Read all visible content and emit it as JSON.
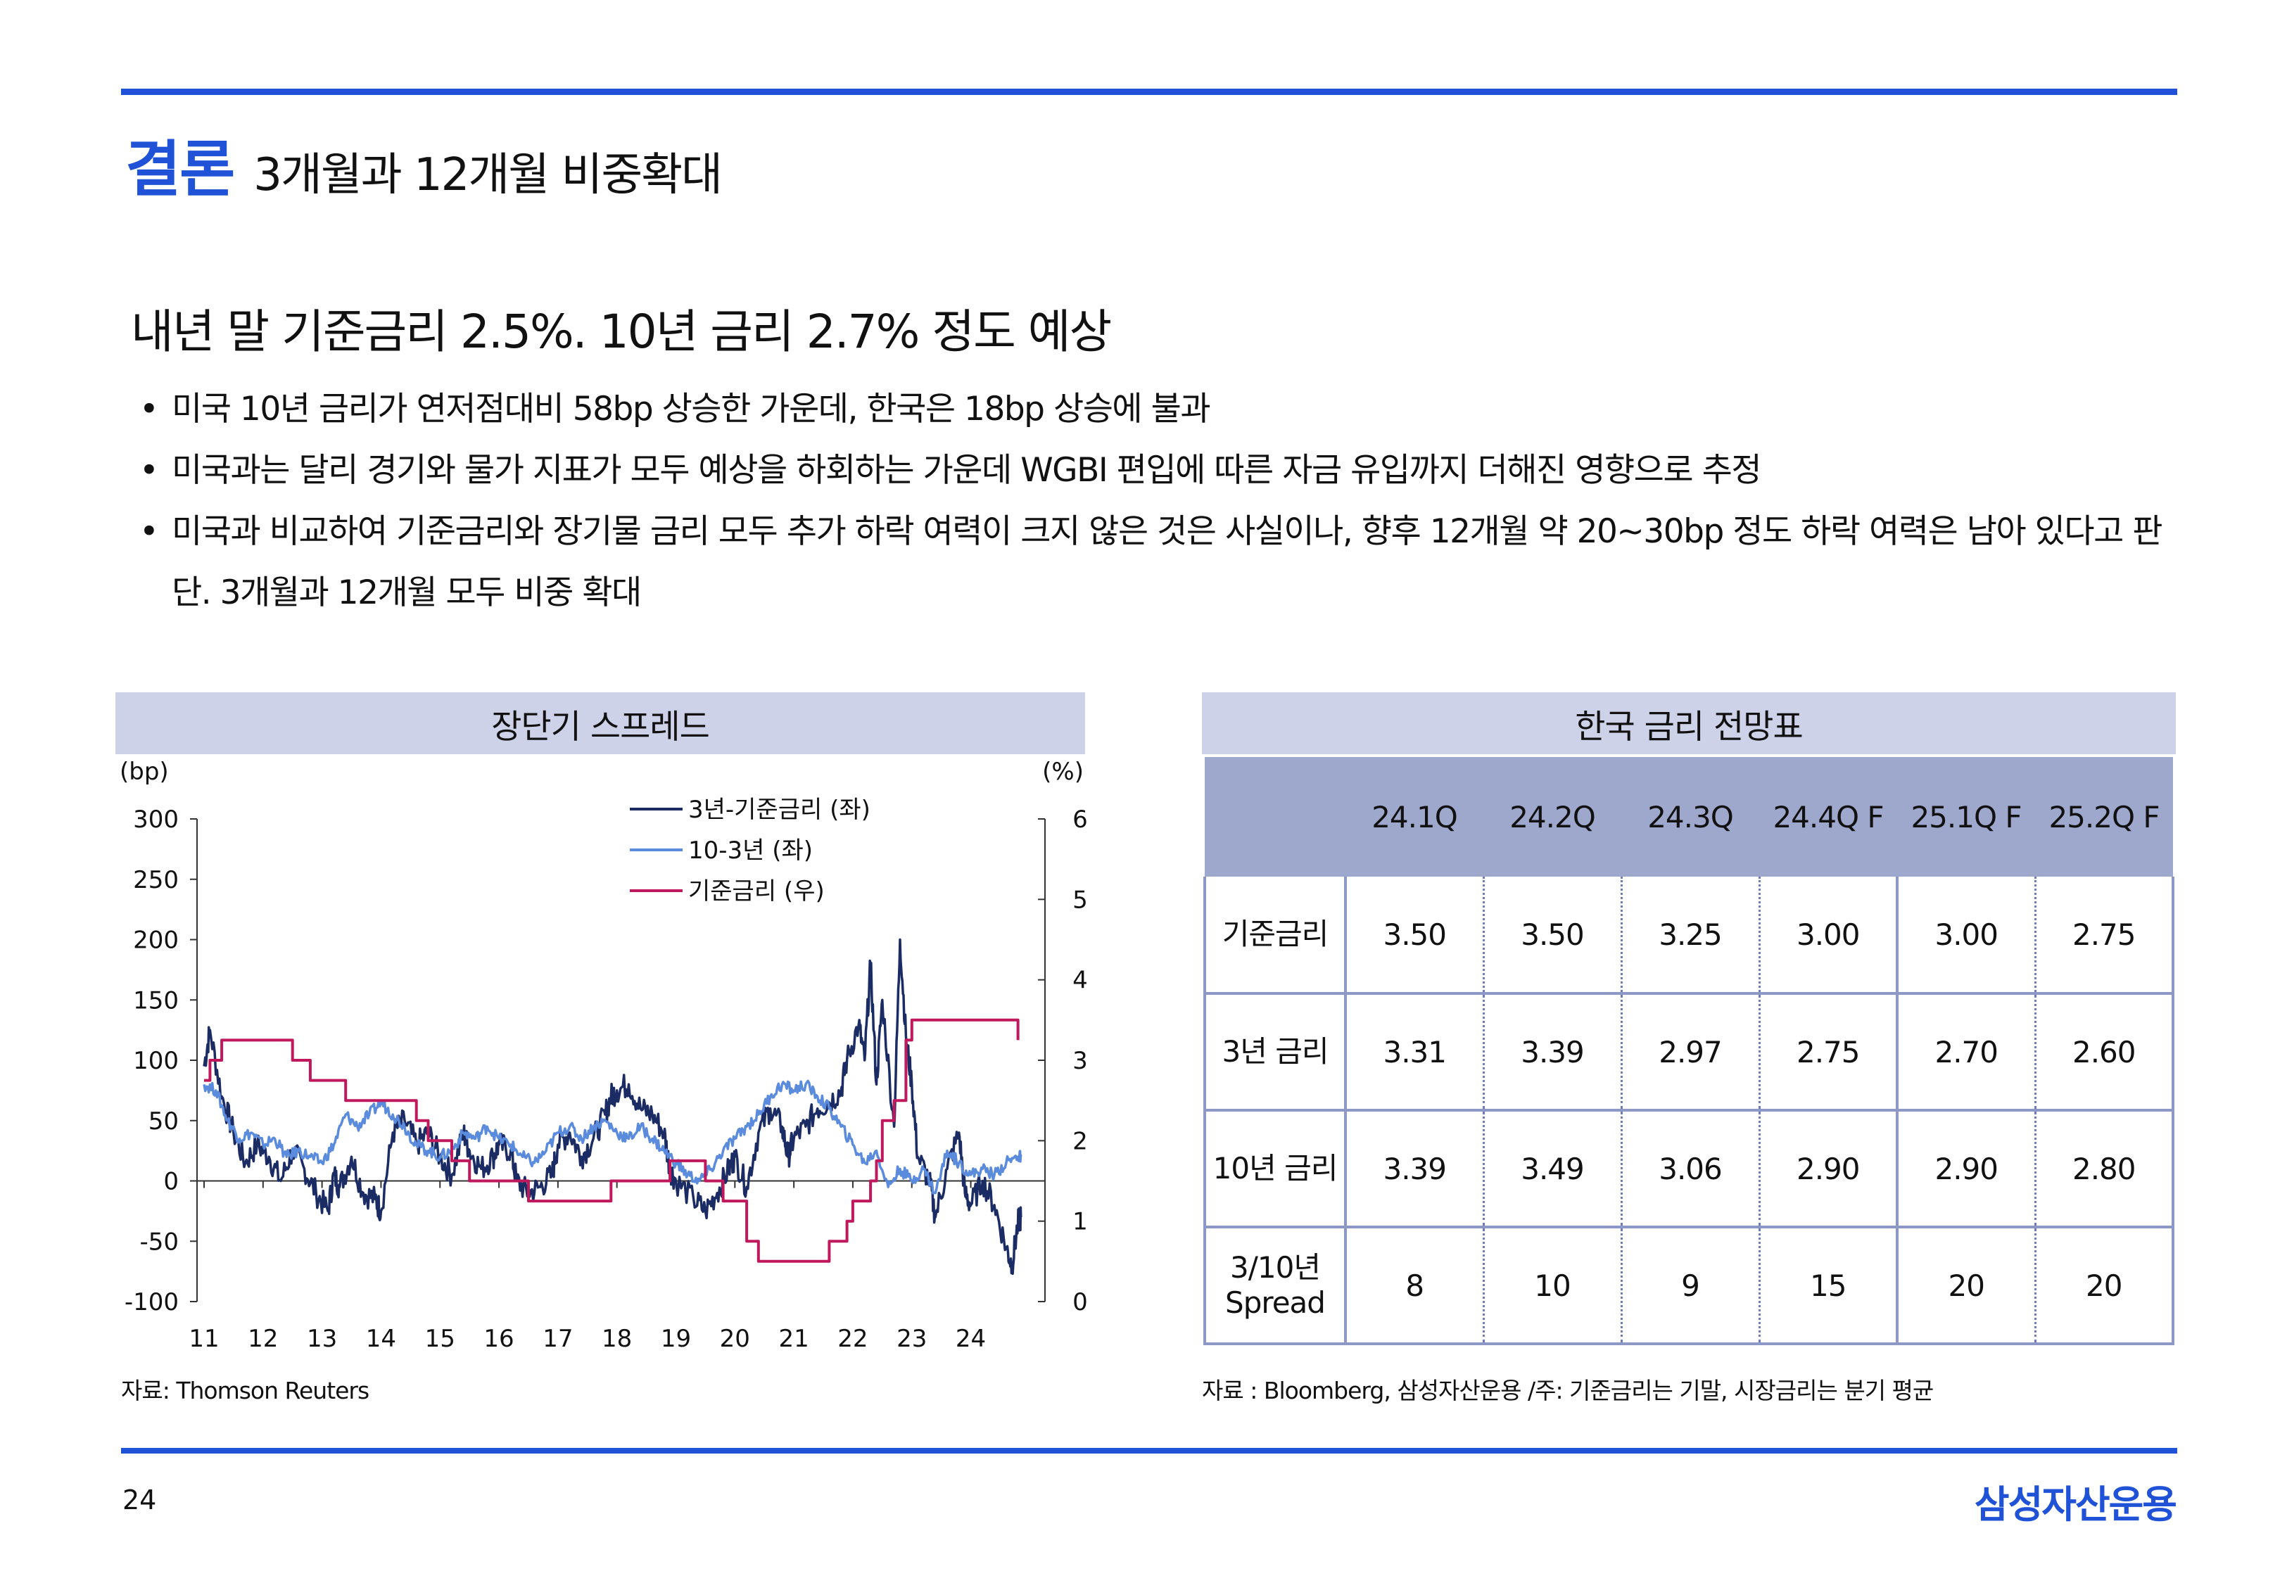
{
  "header": {
    "title_accent": "결론",
    "title_rest": "3개월과 12개월 비중확대"
  },
  "headline": "내년 말 기준금리 2.5%. 10년 금리 2.7% 정도 예상",
  "bullets": [
    "미국 10년 금리가 연저점대비 58bp 상승한 가운데, 한국은 18bp 상승에 불과",
    "미국과는 달리 경기와 물가 지표가 모두 예상을 하회하는 가운데 WGBI 편입에 따른 자금 유입까지 더해진 영향으로 추정",
    "미국과 비교하여 기준금리와 장기물 금리 모두 추가 하락 여력이 크지 않은 것은 사실이나, 향후 12개월 약 20~30bp 정도 하락 여력은 남아 있다고 판단. 3개월과 12개월 모두 비중 확대"
  ],
  "chart_panel": {
    "title": "장단기 스프레드",
    "source": "자료:  Thomson Reuters"
  },
  "chart_data": {
    "type": "line",
    "title": "장단기 스프레드",
    "left_axis_unit": "(bp)",
    "right_axis_unit": "(%)",
    "ylim_left": [
      -100,
      300
    ],
    "yticks_left": [
      "300",
      "250",
      "200",
      "150",
      "100",
      "50",
      "0",
      "-50",
      "-100"
    ],
    "ylim_right": [
      0,
      6
    ],
    "yticks_right": [
      "6",
      "5",
      "4",
      "3",
      "2",
      "1",
      "0"
    ],
    "x_range": [
      2011,
      2024.9
    ],
    "xticks": [
      "11",
      "12",
      "13",
      "14",
      "15",
      "16",
      "17",
      "18",
      "19",
      "20",
      "21",
      "22",
      "23",
      "24"
    ],
    "legend_position": "top-center",
    "series": [
      {
        "name": "3년-기준금리 (좌)",
        "axis": "left",
        "color": "#1b2b63",
        "points": [
          [
            2011.0,
            95
          ],
          [
            2011.1,
            125
          ],
          [
            2011.3,
            70
          ],
          [
            2011.5,
            40
          ],
          [
            2011.7,
            15
          ],
          [
            2011.9,
            30
          ],
          [
            2012.1,
            20
          ],
          [
            2012.3,
            0
          ],
          [
            2012.5,
            25
          ],
          [
            2012.7,
            10
          ],
          [
            2012.9,
            -10
          ],
          [
            2013.1,
            -25
          ],
          [
            2013.2,
            5
          ],
          [
            2013.3,
            -5
          ],
          [
            2013.5,
            20
          ],
          [
            2013.7,
            -10
          ],
          [
            2013.9,
            -15
          ],
          [
            2014.0,
            -25
          ],
          [
            2014.2,
            40
          ],
          [
            2014.4,
            50
          ],
          [
            2014.6,
            30
          ],
          [
            2014.8,
            40
          ],
          [
            2015.0,
            20
          ],
          [
            2015.2,
            5
          ],
          [
            2015.4,
            40
          ],
          [
            2015.5,
            25
          ],
          [
            2015.7,
            10
          ],
          [
            2015.9,
            20
          ],
          [
            2016.0,
            30
          ],
          [
            2016.2,
            25
          ],
          [
            2016.3,
            0
          ],
          [
            2016.5,
            -10
          ],
          [
            2016.7,
            -5
          ],
          [
            2016.9,
            5
          ],
          [
            2017.0,
            30
          ],
          [
            2017.2,
            40
          ],
          [
            2017.4,
            20
          ],
          [
            2017.6,
            35
          ],
          [
            2017.8,
            55
          ],
          [
            2017.9,
            70
          ],
          [
            2018.0,
            75
          ],
          [
            2018.2,
            80
          ],
          [
            2018.4,
            60
          ],
          [
            2018.6,
            55
          ],
          [
            2018.8,
            40
          ],
          [
            2018.9,
            10
          ],
          [
            2019.0,
            0
          ],
          [
            2019.3,
            -15
          ],
          [
            2019.5,
            -25
          ],
          [
            2019.7,
            -10
          ],
          [
            2019.9,
            10
          ],
          [
            2020.0,
            20
          ],
          [
            2020.2,
            -5
          ],
          [
            2020.4,
            40
          ],
          [
            2020.6,
            60
          ],
          [
            2020.8,
            45
          ],
          [
            2020.9,
            20
          ],
          [
            2021.0,
            35
          ],
          [
            2021.2,
            45
          ],
          [
            2021.4,
            60
          ],
          [
            2021.6,
            65
          ],
          [
            2021.8,
            75
          ],
          [
            2021.9,
            100
          ],
          [
            2022.1,
            130
          ],
          [
            2022.2,
            100
          ],
          [
            2022.3,
            180
          ],
          [
            2022.4,
            80
          ],
          [
            2022.5,
            150
          ],
          [
            2022.7,
            45
          ],
          [
            2022.8,
            200
          ],
          [
            2022.9,
            120
          ],
          [
            2023.0,
            80
          ],
          [
            2023.1,
            20
          ],
          [
            2023.3,
            0
          ],
          [
            2023.4,
            -30
          ],
          [
            2023.6,
            10
          ],
          [
            2023.8,
            40
          ],
          [
            2023.9,
            -10
          ],
          [
            2024.0,
            -20
          ],
          [
            2024.2,
            0
          ],
          [
            2024.4,
            -20
          ],
          [
            2024.6,
            -55
          ],
          [
            2024.7,
            -70
          ],
          [
            2024.8,
            -35
          ],
          [
            2024.85,
            -30
          ]
        ]
      },
      {
        "name": "10-3년 (좌)",
        "axis": "left",
        "color": "#5b8bdc",
        "points": [
          [
            2011.0,
            80
          ],
          [
            2011.2,
            75
          ],
          [
            2011.4,
            50
          ],
          [
            2011.6,
            35
          ],
          [
            2011.8,
            40
          ],
          [
            2012.0,
            30
          ],
          [
            2012.2,
            35
          ],
          [
            2012.4,
            20
          ],
          [
            2012.6,
            25
          ],
          [
            2012.8,
            20
          ],
          [
            2013.0,
            15
          ],
          [
            2013.2,
            30
          ],
          [
            2013.4,
            55
          ],
          [
            2013.6,
            45
          ],
          [
            2013.8,
            55
          ],
          [
            2014.0,
            65
          ],
          [
            2014.2,
            55
          ],
          [
            2014.4,
            45
          ],
          [
            2014.6,
            30
          ],
          [
            2014.8,
            25
          ],
          [
            2015.0,
            20
          ],
          [
            2015.2,
            25
          ],
          [
            2015.4,
            40
          ],
          [
            2015.6,
            35
          ],
          [
            2015.8,
            45
          ],
          [
            2016.0,
            35
          ],
          [
            2016.2,
            30
          ],
          [
            2016.4,
            20
          ],
          [
            2016.6,
            15
          ],
          [
            2016.8,
            25
          ],
          [
            2017.0,
            40
          ],
          [
            2017.2,
            45
          ],
          [
            2017.4,
            35
          ],
          [
            2017.6,
            45
          ],
          [
            2017.8,
            50
          ],
          [
            2018.0,
            40
          ],
          [
            2018.2,
            35
          ],
          [
            2018.4,
            45
          ],
          [
            2018.6,
            35
          ],
          [
            2018.8,
            25
          ],
          [
            2019.0,
            15
          ],
          [
            2019.2,
            5
          ],
          [
            2019.4,
            0
          ],
          [
            2019.6,
            10
          ],
          [
            2019.8,
            25
          ],
          [
            2020.0,
            35
          ],
          [
            2020.2,
            45
          ],
          [
            2020.4,
            55
          ],
          [
            2020.6,
            70
          ],
          [
            2020.8,
            80
          ],
          [
            2021.0,
            75
          ],
          [
            2021.2,
            80
          ],
          [
            2021.4,
            70
          ],
          [
            2021.6,
            60
          ],
          [
            2021.8,
            45
          ],
          [
            2022.0,
            30
          ],
          [
            2022.2,
            15
          ],
          [
            2022.4,
            25
          ],
          [
            2022.6,
            -5
          ],
          [
            2022.8,
            10
          ],
          [
            2023.0,
            0
          ],
          [
            2023.2,
            10
          ],
          [
            2023.4,
            -10
          ],
          [
            2023.6,
            25
          ],
          [
            2023.8,
            15
          ],
          [
            2024.0,
            5
          ],
          [
            2024.2,
            10
          ],
          [
            2024.4,
            5
          ],
          [
            2024.6,
            15
          ],
          [
            2024.8,
            20
          ],
          [
            2024.85,
            20
          ]
        ]
      },
      {
        "name": "기준금리 (우)",
        "axis": "right",
        "color": "#c0185c",
        "steps": [
          [
            2011.0,
            2.75
          ],
          [
            2011.1,
            3.0
          ],
          [
            2011.3,
            3.25
          ],
          [
            2011.45,
            3.25
          ],
          [
            2012.5,
            3.0
          ],
          [
            2012.8,
            2.75
          ],
          [
            2013.4,
            2.5
          ],
          [
            2014.6,
            2.25
          ],
          [
            2014.8,
            2.0
          ],
          [
            2015.2,
            1.75
          ],
          [
            2015.5,
            1.5
          ],
          [
            2016.5,
            1.25
          ],
          [
            2017.9,
            1.5
          ],
          [
            2018.9,
            1.75
          ],
          [
            2019.5,
            1.5
          ],
          [
            2019.8,
            1.25
          ],
          [
            2020.2,
            0.75
          ],
          [
            2020.4,
            0.5
          ],
          [
            2021.6,
            0.75
          ],
          [
            2021.9,
            1.0
          ],
          [
            2022.0,
            1.25
          ],
          [
            2022.3,
            1.5
          ],
          [
            2022.4,
            1.75
          ],
          [
            2022.5,
            2.25
          ],
          [
            2022.7,
            2.5
          ],
          [
            2022.9,
            3.25
          ],
          [
            2023.0,
            3.5
          ],
          [
            2024.8,
            3.25
          ]
        ]
      }
    ]
  },
  "table_panel": {
    "title": "한국 금리 전망표",
    "columns": [
      "",
      "24.1Q",
      "24.2Q",
      "24.3Q",
      "24.4Q F",
      "25.1Q F",
      "25.2Q F"
    ],
    "rows": [
      {
        "label": "기준금리",
        "label2": "",
        "values": [
          "3.50",
          "3.50",
          "3.25",
          "3.00",
          "3.00",
          "2.75"
        ]
      },
      {
        "label": "3년 금리",
        "label2": "",
        "values": [
          "3.31",
          "3.39",
          "2.97",
          "2.75",
          "2.70",
          "2.60"
        ]
      },
      {
        "label": "10년 금리",
        "label2": "",
        "values": [
          "3.39",
          "3.49",
          "3.06",
          "2.90",
          "2.90",
          "2.80"
        ]
      },
      {
        "label": "3/10년",
        "label2": "Spread",
        "values": [
          "8",
          "10",
          "9",
          "15",
          "20",
          "20"
        ]
      }
    ],
    "source": "자료 : Bloomberg, 삼성자산운용 /주: 기준금리는 기말, 시장금리는 분기 평균"
  },
  "footer": {
    "page_number": "24",
    "brand": "삼성자산운용"
  },
  "colors": {
    "accent": "#1f52d6",
    "panel_header": "#cdd2e8",
    "table_header": "#9ea7cc"
  }
}
